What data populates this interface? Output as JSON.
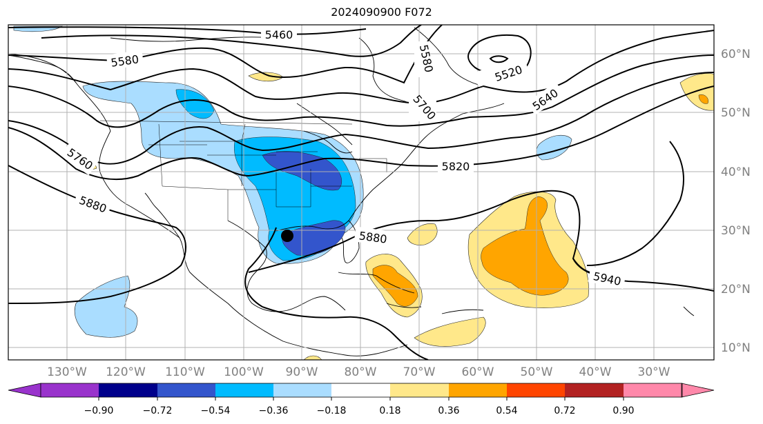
{
  "map": {
    "title": "2024090900 F072",
    "longitude_labels": [
      "130°W",
      "120°W",
      "110°W",
      "100°W",
      "90°W",
      "80°W",
      "70°W",
      "60°W",
      "50°W",
      "40°W",
      "30°W"
    ],
    "latitude_labels": [
      "60°N",
      "50°N",
      "40°N",
      "30°N",
      "20°N",
      "10°N"
    ],
    "contour_labels": [
      "5460",
      "5520",
      "5580",
      "5580",
      "5640",
      "5700",
      "5760",
      "5820",
      "5880",
      "5880",
      "5940"
    ],
    "marker": "storm-center-dot"
  },
  "colorbar": {
    "tick_labels": [
      "−0.90",
      "−0.72",
      "−0.54",
      "−0.36",
      "−0.18",
      "0.18",
      "0.36",
      "0.54",
      "0.72",
      "0.90"
    ],
    "colors": [
      "#9933cc",
      "#00008b",
      "#3355cc",
      "#00bbff",
      "#aaddff",
      "#ffffff",
      "#ffe88a",
      "#ffa500",
      "#ff4500",
      "#b22222",
      "#ff88aa"
    ]
  },
  "colors": {
    "light_blue": "#aaddff",
    "blue": "#00bbff",
    "dark_blue": "#3355cc",
    "light_yellow": "#ffe88a",
    "orange": "#ffa500",
    "grid": "#b0b0b0"
  }
}
